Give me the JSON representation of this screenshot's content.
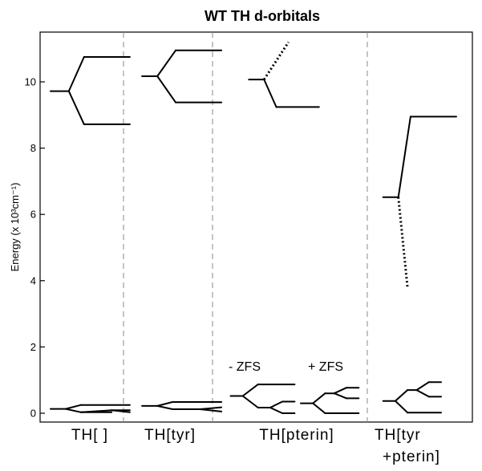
{
  "chart_data": {
    "type": "energy-level-diagram",
    "title": "WT TH d-orbitals",
    "ylabel": "Energy (x 10³cm⁻¹)",
    "ylim": [
      -0.2,
      11.5
    ],
    "yticks": [
      0,
      2,
      4,
      6,
      8,
      10
    ],
    "grid": false,
    "categories": [
      {
        "label": "TH[ ]"
      },
      {
        "label": "TH[tyr]"
      },
      {
        "label": "TH[pterin]"
      },
      {
        "label": "TH[tyr",
        "label2": "+pterin]"
      }
    ],
    "annotations": [
      {
        "text": "- ZFS",
        "x": 3.6,
        "y": 1.3
      },
      {
        "text": "+ ZFS",
        "x": 6.4,
        "y": 1.3
      }
    ],
    "segments": [
      {
        "x1": 0.0,
        "y1": 9.72,
        "x2": 0.6,
        "y2": 9.72
      },
      {
        "x1": 0.6,
        "y1": 9.72,
        "x2": 1.1,
        "y2": 10.75
      },
      {
        "x1": 1.1,
        "y1": 10.75,
        "x2": 2.6,
        "y2": 10.75
      },
      {
        "x1": 0.6,
        "y1": 9.72,
        "x2": 1.1,
        "y2": 8.72
      },
      {
        "x1": 1.1,
        "y1": 8.72,
        "x2": 2.6,
        "y2": 8.72
      },
      {
        "x1": 0.0,
        "y1": 0.13,
        "x2": 0.5,
        "y2": 0.13
      },
      {
        "x1": 0.5,
        "y1": 0.13,
        "x2": 1.0,
        "y2": 0.25
      },
      {
        "x1": 1.0,
        "y1": 0.25,
        "x2": 2.6,
        "y2": 0.25
      },
      {
        "x1": 0.5,
        "y1": 0.13,
        "x2": 1.0,
        "y2": 0.03
      },
      {
        "x1": 1.0,
        "y1": 0.03,
        "x2": 2.0,
        "y2": 0.03
      },
      {
        "x1": 1.0,
        "y1": 0.03,
        "x2": 2.0,
        "y2": 0.09
      },
      {
        "x1": 2.0,
        "y1": 0.09,
        "x2": 2.6,
        "y2": 0.09
      },
      {
        "x1": 2.0,
        "y1": 0.09,
        "x2": 2.6,
        "y2": 0.03
      },
      {
        "x1": 3.0,
        "y1": 10.17,
        "x2": 3.5,
        "y2": 10.17
      },
      {
        "x1": 3.5,
        "y1": 10.17,
        "x2": 4.1,
        "y2": 10.95
      },
      {
        "x1": 4.1,
        "y1": 10.95,
        "x2": 5.6,
        "y2": 10.95
      },
      {
        "x1": 3.5,
        "y1": 10.17,
        "x2": 4.1,
        "y2": 9.38
      },
      {
        "x1": 4.1,
        "y1": 9.38,
        "x2": 5.6,
        "y2": 9.38
      },
      {
        "x1": 3.0,
        "y1": 0.22,
        "x2": 3.5,
        "y2": 0.22
      },
      {
        "x1": 3.5,
        "y1": 0.22,
        "x2": 4.0,
        "y2": 0.34
      },
      {
        "x1": 4.0,
        "y1": 0.34,
        "x2": 5.6,
        "y2": 0.34
      },
      {
        "x1": 3.5,
        "y1": 0.22,
        "x2": 4.0,
        "y2": 0.12
      },
      {
        "x1": 4.0,
        "y1": 0.12,
        "x2": 4.9,
        "y2": 0.12
      },
      {
        "x1": 4.9,
        "y1": 0.12,
        "x2": 5.6,
        "y2": 0.18
      },
      {
        "x1": 4.9,
        "y1": 0.12,
        "x2": 5.6,
        "y2": 0.05
      },
      {
        "x1": 6.5,
        "y1": 10.07,
        "x2": 7.0,
        "y2": 10.07
      },
      {
        "x1": 7.0,
        "y1": 10.07,
        "x2": 7.8,
        "y2": 11.2,
        "dotted": true
      },
      {
        "x1": 7.0,
        "y1": 10.07,
        "x2": 7.4,
        "y2": 9.24
      },
      {
        "x1": 7.4,
        "y1": 9.24,
        "x2": 8.8,
        "y2": 9.24
      },
      {
        "x1": 5.9,
        "y1": 0.52,
        "x2": 6.3,
        "y2": 0.52
      },
      {
        "x1": 6.3,
        "y1": 0.52,
        "x2": 6.8,
        "y2": 0.87
      },
      {
        "x1": 6.8,
        "y1": 0.87,
        "x2": 8.0,
        "y2": 0.87
      },
      {
        "x1": 6.3,
        "y1": 0.52,
        "x2": 6.8,
        "y2": 0.17
      },
      {
        "x1": 6.8,
        "y1": 0.17,
        "x2": 7.2,
        "y2": 0.17
      },
      {
        "x1": 7.2,
        "y1": 0.17,
        "x2": 7.6,
        "y2": 0.35
      },
      {
        "x1": 7.6,
        "y1": 0.35,
        "x2": 8.0,
        "y2": 0.35
      },
      {
        "x1": 7.2,
        "y1": 0.17,
        "x2": 7.6,
        "y2": 0.0
      },
      {
        "x1": 7.6,
        "y1": 0.0,
        "x2": 8.0,
        "y2": 0.0
      },
      {
        "x1": 8.2,
        "y1": 0.3,
        "x2": 8.6,
        "y2": 0.3
      },
      {
        "x1": 8.6,
        "y1": 0.3,
        "x2": 9.0,
        "y2": 0.6
      },
      {
        "x1": 9.0,
        "y1": 0.6,
        "x2": 9.3,
        "y2": 0.6
      },
      {
        "x1": 9.3,
        "y1": 0.6,
        "x2": 9.7,
        "y2": 0.77
      },
      {
        "x1": 9.7,
        "y1": 0.77,
        "x2": 10.1,
        "y2": 0.77
      },
      {
        "x1": 9.3,
        "y1": 0.6,
        "x2": 9.7,
        "y2": 0.45
      },
      {
        "x1": 9.7,
        "y1": 0.45,
        "x2": 10.1,
        "y2": 0.45
      },
      {
        "x1": 8.6,
        "y1": 0.3,
        "x2": 9.0,
        "y2": 0.0
      },
      {
        "x1": 9.0,
        "y1": 0.0,
        "x2": 10.1,
        "y2": 0.0
      },
      {
        "x1": 10.9,
        "y1": 6.52,
        "x2": 11.4,
        "y2": 6.52
      },
      {
        "x1": 11.4,
        "y1": 6.52,
        "x2": 11.8,
        "y2": 8.95
      },
      {
        "x1": 11.8,
        "y1": 8.95,
        "x2": 13.3,
        "y2": 8.95
      },
      {
        "x1": 11.4,
        "y1": 6.52,
        "x2": 11.7,
        "y2": 3.8,
        "dotted": true
      },
      {
        "x1": 10.9,
        "y1": 0.37,
        "x2": 11.3,
        "y2": 0.37
      },
      {
        "x1": 11.3,
        "y1": 0.37,
        "x2": 11.7,
        "y2": 0.7
      },
      {
        "x1": 11.7,
        "y1": 0.7,
        "x2": 12.0,
        "y2": 0.7
      },
      {
        "x1": 12.0,
        "y1": 0.7,
        "x2": 12.4,
        "y2": 0.94
      },
      {
        "x1": 12.4,
        "y1": 0.94,
        "x2": 12.8,
        "y2": 0.94
      },
      {
        "x1": 12.0,
        "y1": 0.7,
        "x2": 12.4,
        "y2": 0.5
      },
      {
        "x1": 12.4,
        "y1": 0.5,
        "x2": 12.8,
        "y2": 0.5
      },
      {
        "x1": 11.3,
        "y1": 0.37,
        "x2": 11.7,
        "y2": 0.02
      },
      {
        "x1": 11.7,
        "y1": 0.02,
        "x2": 12.8,
        "y2": 0.02
      }
    ]
  }
}
